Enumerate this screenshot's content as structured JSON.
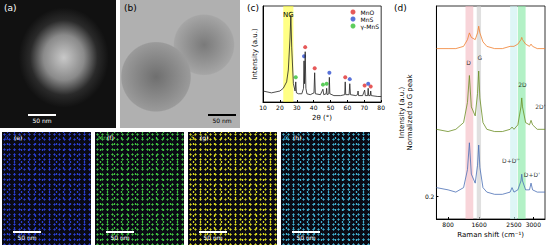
{
  "images": [
    {
      "panel": "(a)",
      "scale_bar": "50 nm"
    },
    {
      "panel": "(b)",
      "scale_bar": "50 nm"
    }
  ],
  "maps": [
    {
      "panel": "(e)",
      "element": "C",
      "color": "#2a3fd0",
      "scale_bar": "50 nm"
    },
    {
      "panel": "(f)",
      "element": "Mn",
      "color": "#3fc040",
      "scale_bar": "50 nm"
    },
    {
      "panel": "(g)",
      "element": "S",
      "color": "#d8d820",
      "scale_bar": "50 nm"
    },
    {
      "panel": "(h)",
      "element": "O",
      "color": "#40b0d0",
      "scale_bar": "50 nm"
    }
  ],
  "chart_data": [
    {
      "panel": "(c)",
      "type": "line",
      "xlabel": "2θ (°)",
      "ylabel": "Intensity (a.u.)",
      "x": [
        10,
        15,
        20,
        22,
        24,
        25,
        26,
        26.5,
        27,
        28,
        29,
        29.4,
        29.8,
        31,
        33,
        34,
        34.3,
        34.6,
        35,
        35.4,
        36,
        38,
        40.2,
        40.6,
        41,
        44,
        45.5,
        46,
        47.4,
        47.7,
        48,
        49,
        49.3,
        49.6,
        52,
        56,
        58.4,
        58.7,
        59,
        61,
        61.4,
        61.8,
        65,
        66,
        66.3,
        66.6,
        69,
        70.2,
        70.6,
        72,
        72.3,
        72.6,
        73.5,
        73.8,
        74.1,
        78,
        80
      ],
      "values": [
        0.12,
        0.1,
        0.12,
        0.15,
        0.22,
        0.35,
        0.7,
        0.95,
        0.6,
        0.2,
        0.12,
        0.22,
        0.1,
        0.09,
        0.09,
        0.15,
        0.45,
        0.2,
        0.55,
        0.15,
        0.09,
        0.08,
        0.1,
        0.32,
        0.09,
        0.08,
        0.14,
        0.08,
        0.09,
        0.15,
        0.08,
        0.09,
        0.27,
        0.09,
        0.07,
        0.07,
        0.08,
        0.22,
        0.08,
        0.08,
        0.2,
        0.08,
        0.07,
        0.08,
        0.12,
        0.07,
        0.07,
        0.13,
        0.07,
        0.07,
        0.15,
        0.07,
        0.07,
        0.12,
        0.07,
        0.06,
        0.06
      ],
      "color": "#222222",
      "xlim": [
        10,
        80
      ],
      "xticks": [
        10,
        20,
        30,
        40,
        50,
        60,
        70,
        80
      ],
      "ylim": [
        0,
        1.05
      ],
      "tick_labels": "x",
      "legend": "upper right",
      "bands": [
        {
          "label": "NG",
          "range": [
            22,
            28
          ],
          "color": "#ffff33"
        }
      ],
      "markers": [
        {
          "name": "MnO",
          "color": "#e03030",
          "marker": "circle",
          "x": [
            35,
            40.6,
            58.7,
            70.2,
            73.8
          ],
          "y": [
            0.6,
            0.37,
            0.27,
            0.18,
            0.17
          ]
        },
        {
          "name": "MnS",
          "color": "#2f4fd0",
          "marker": "circle",
          "x": [
            34.3,
            49.3,
            61.4,
            72.3
          ],
          "y": [
            0.5,
            0.32,
            0.25,
            0.2
          ]
        },
        {
          "name": "γ-MnS",
          "color": "#33c033",
          "marker": "circle",
          "x": [
            29.4,
            45.5,
            47.7
          ],
          "y": [
            0.27,
            0.19,
            0.2
          ]
        }
      ]
    },
    {
      "panel": "(d)",
      "type": "line",
      "xlabel": "Raman shift (cm⁻¹)",
      "ylabel": [
        "Intensity (a.u.)",
        "Normalized to G peak"
      ],
      "x": [
        500,
        800,
        1000,
        1200,
        1300,
        1350,
        1400,
        1500,
        1560,
        1590,
        1620,
        1700,
        1800,
        2000,
        2200,
        2400,
        2450,
        2500,
        2600,
        2680,
        2700,
        2720,
        2800,
        2900,
        2940,
        2980,
        3100,
        3300
      ],
      "series": [
        {
          "color": "#f08030",
          "values": [
            0.86,
            0.86,
            0.86,
            0.87,
            0.9,
            0.93,
            0.91,
            0.9,
            0.93,
            0.96,
            0.93,
            0.89,
            0.87,
            0.86,
            0.86,
            0.87,
            0.87,
            0.87,
            0.88,
            0.9,
            0.91,
            0.9,
            0.88,
            0.87,
            0.88,
            0.87,
            0.86,
            0.86
          ]
        },
        {
          "color": "#6b8e23",
          "values": [
            0.5,
            0.49,
            0.5,
            0.53,
            0.62,
            0.74,
            0.6,
            0.56,
            0.66,
            0.76,
            0.64,
            0.53,
            0.5,
            0.49,
            0.49,
            0.5,
            0.51,
            0.5,
            0.52,
            0.6,
            0.64,
            0.6,
            0.53,
            0.52,
            0.54,
            0.52,
            0.5,
            0.5
          ]
        },
        {
          "color": "#4a6fb5",
          "values": [
            0.24,
            0.23,
            0.22,
            0.24,
            0.32,
            0.44,
            0.3,
            0.26,
            0.34,
            0.43,
            0.33,
            0.24,
            0.22,
            0.21,
            0.21,
            0.22,
            0.24,
            0.22,
            0.23,
            0.27,
            0.3,
            0.27,
            0.23,
            0.23,
            0.26,
            0.23,
            0.22,
            0.22
          ]
        }
      ],
      "xlim": [
        500,
        3300
      ],
      "xticks": [
        800,
        1600,
        2500,
        3000
      ],
      "ylim": [
        0.1,
        1.05
      ],
      "yticks": [
        0.2
      ],
      "bands": [
        {
          "range": [
            1250,
            1450
          ],
          "color": "#f4b8c0"
        },
        {
          "range": [
            1540,
            1650
          ],
          "color": "#cccccc"
        },
        {
          "range": [
            2400,
            2580
          ],
          "color": "#c8f0f0"
        },
        {
          "range": [
            2600,
            2800
          ],
          "color": "#80e8a0"
        }
      ],
      "annotations": [
        {
          "text": "D",
          "x": 1330,
          "y": 0.8
        },
        {
          "text": "G",
          "x": 1620,
          "y": 0.82
        },
        {
          "text": "2D",
          "x": 2720,
          "y": 0.7
        },
        {
          "text": "2D'",
          "x": 3180,
          "y": 0.6
        },
        {
          "text": "D+D''",
          "x": 2420,
          "y": 0.36
        },
        {
          "text": "D+D'",
          "x": 2960,
          "y": 0.3
        }
      ]
    }
  ]
}
